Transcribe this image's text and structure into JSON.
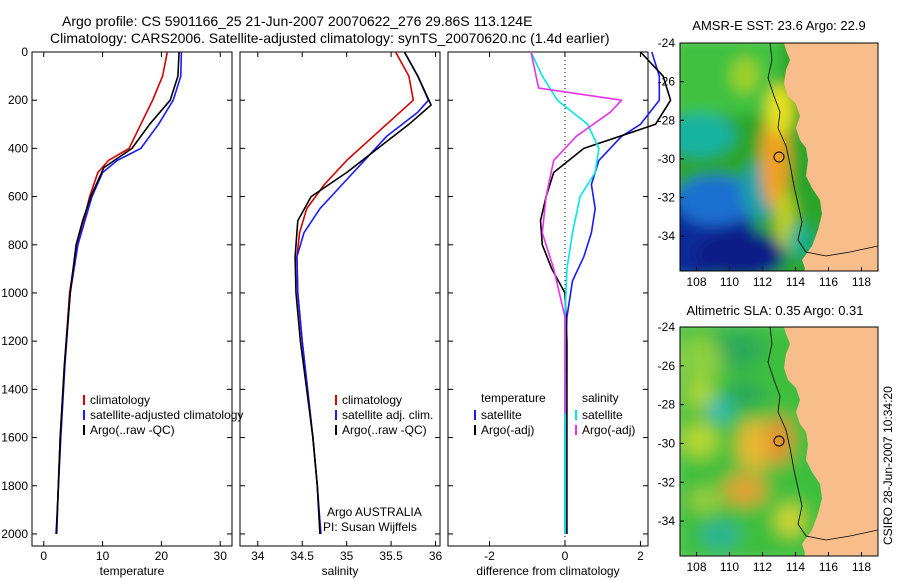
{
  "figure": {
    "title_line1": "Argo profile: CS 5901166_25 21-Jun-2007 20070622_276 29.86S 113.124E",
    "title_line2": "Climatology: CARS2006. Satellite-adjusted climatology: synTS_20070620.nc (1.4d earlier)",
    "side_label": "CSIRO 28-Jun-2007 10:34:20",
    "credit_line1": "Argo AUSTRALIA",
    "credit_line2": "PI: Susan Wijffels"
  },
  "colors": {
    "climatology": "#d40000",
    "satellite": "#1a1aff",
    "argo": "#000000",
    "sal_satellite": "#00e6e6",
    "sal_argo": "#e633e6",
    "land": "#f7be8c"
  },
  "chart_data": [
    {
      "type": "line",
      "xlabel": "temperature",
      "ylabel": "",
      "xlim": [
        -2,
        32
      ],
      "ylim": [
        2050,
        0
      ],
      "y_reversed": true,
      "xticks": [
        0,
        10,
        20,
        30
      ],
      "yticks": [
        0,
        200,
        400,
        600,
        800,
        1000,
        1200,
        1400,
        1600,
        1800,
        2000
      ],
      "legend": [
        "climatology",
        "satellite-adjusted climatology",
        "Argo(..raw -QC)"
      ],
      "legend_position": "lower-right",
      "series": [
        {
          "name": "climatology",
          "color": "#d40000",
          "x": [
            21.0,
            20.2,
            18.5,
            16.5,
            14.5,
            11.0,
            9.2,
            7.8,
            6.8,
            5.6,
            4.4,
            3.5,
            2.8,
            2.4,
            2.2
          ],
          "y": [
            0,
            100,
            200,
            300,
            400,
            450,
            500,
            600,
            700,
            800,
            1000,
            1300,
            1600,
            1850,
            2000
          ]
        },
        {
          "name": "satellite-adjusted climatology",
          "color": "#1a1aff",
          "x": [
            23.4,
            23.3,
            22.0,
            19.5,
            16.5,
            12.5,
            10.0,
            8.2,
            7.0,
            5.8,
            4.5,
            3.6,
            2.9,
            2.4,
            2.2
          ],
          "y": [
            0,
            100,
            200,
            300,
            400,
            450,
            500,
            600,
            700,
            800,
            1000,
            1300,
            1600,
            1850,
            2000
          ]
        },
        {
          "name": "Argo(..raw -QC)",
          "color": "#000000",
          "x": [
            23.0,
            22.8,
            21.5,
            18.0,
            15.0,
            12.0,
            10.2,
            8.0,
            6.6,
            5.5,
            4.5,
            3.5,
            2.8,
            2.4,
            2.1
          ],
          "y": [
            0,
            100,
            200,
            300,
            400,
            450,
            480,
            600,
            700,
            800,
            1000,
            1300,
            1600,
            1850,
            2000
          ]
        }
      ]
    },
    {
      "type": "line",
      "xlabel": "salinity",
      "ylabel": "",
      "xlim": [
        33.8,
        36.05
      ],
      "ylim": [
        2050,
        0
      ],
      "y_reversed": true,
      "xticks": [
        34,
        34.5,
        35,
        35.5,
        36
      ],
      "yticks": [
        0,
        200,
        400,
        600,
        800,
        1000,
        1200,
        1400,
        1600,
        1800,
        2000
      ],
      "legend": [
        "climatology",
        "satellite adj. clim.",
        "Argo(..raw -QC)"
      ],
      "legend_position": "lower-right",
      "series": [
        {
          "name": "climatology",
          "color": "#d40000",
          "x": [
            35.55,
            35.7,
            35.75,
            35.6,
            35.3,
            35.0,
            34.75,
            34.55,
            34.47,
            34.44,
            34.45,
            34.5,
            34.56,
            34.62,
            34.67,
            34.7
          ],
          "y": [
            0,
            100,
            200,
            250,
            350,
            450,
            550,
            650,
            750,
            850,
            1000,
            1200,
            1400,
            1600,
            1800,
            2000
          ]
        },
        {
          "name": "satellite adj. clim.",
          "color": "#1a1aff",
          "x": [
            35.65,
            35.8,
            35.92,
            35.8,
            35.45,
            35.2,
            34.95,
            34.7,
            34.52,
            34.44,
            34.45,
            34.5,
            34.56,
            34.62,
            34.67,
            34.71
          ],
          "y": [
            0,
            100,
            200,
            250,
            350,
            450,
            550,
            650,
            750,
            850,
            1000,
            1200,
            1400,
            1600,
            1800,
            2000
          ]
        },
        {
          "name": "Argo(..raw -QC)",
          "color": "#000000",
          "x": [
            35.65,
            35.8,
            35.9,
            35.95,
            35.7,
            35.35,
            35.0,
            34.6,
            34.45,
            34.42,
            34.43,
            34.48,
            34.55,
            34.62,
            34.67,
            34.7
          ],
          "y": [
            0,
            100,
            180,
            220,
            300,
            400,
            500,
            600,
            700,
            850,
            1000,
            1200,
            1400,
            1600,
            1800,
            2000
          ]
        }
      ]
    },
    {
      "type": "line",
      "xlabel": "difference from climatology",
      "ylabel": "",
      "xlim": [
        -3.1,
        2.2
      ],
      "ylim": [
        2050,
        0
      ],
      "y_reversed": true,
      "xticks": [
        -2,
        0,
        2
      ],
      "yticks": [
        0,
        200,
        400,
        600,
        800,
        1000,
        1200,
        1400,
        1600,
        1800,
        2000
      ],
      "legend_headers": [
        "temperature",
        "salinity"
      ],
      "legend": [
        "satellite",
        "Argo(-adj)",
        "satellite",
        "Argo(-adj)"
      ],
      "legend_position": "lower-center",
      "series": [
        {
          "name": "satellite",
          "variable": "temperature",
          "color": "#1a1aff",
          "x": [
            2.3,
            2.5,
            2.5,
            2.0,
            1.5,
            0.9,
            0.7,
            0.8,
            0.7,
            0.5,
            0.2,
            0.05,
            0.0,
            0.0,
            0.0
          ],
          "y": [
            0,
            100,
            200,
            300,
            350,
            450,
            550,
            650,
            750,
            850,
            950,
            1100,
            1400,
            1700,
            2000
          ]
        },
        {
          "name": "Argo(-adj)",
          "variable": "temperature",
          "color": "#000000",
          "x": [
            2.0,
            2.6,
            2.8,
            2.4,
            0.5,
            -0.3,
            -0.5,
            -0.65,
            -0.6,
            -0.35,
            0.0,
            0.05,
            0.05,
            0.05,
            0.05
          ],
          "y": [
            0,
            100,
            200,
            300,
            400,
            500,
            600,
            700,
            800,
            900,
            1000,
            1200,
            1500,
            1800,
            2000
          ]
        },
        {
          "name": "satellite",
          "variable": "salinity",
          "color": "#00e6e6",
          "x": [
            -0.9,
            -0.6,
            -0.2,
            0.6,
            0.9,
            0.8,
            0.4,
            0.2,
            0.05,
            0.0,
            0.0,
            0.0
          ],
          "y": [
            0,
            100,
            200,
            300,
            400,
            500,
            600,
            750,
            900,
            1100,
            1500,
            2000
          ]
        },
        {
          "name": "Argo(-adj)",
          "variable": "salinity",
          "color": "#e633e6",
          "x": [
            -0.9,
            -0.7,
            1.5,
            1.2,
            0.3,
            -0.3,
            -0.5,
            -0.6,
            -0.3,
            0.0,
            0.0
          ],
          "y": [
            0,
            150,
            200,
            250,
            350,
            450,
            600,
            750,
            900,
            1100,
            1500
          ]
        }
      ]
    },
    {
      "type": "heatmap",
      "title": "AMSR-E SST: 23.6 Argo: 22.9",
      "xlim": [
        107,
        119
      ],
      "ylim": [
        -35.8,
        -24
      ],
      "xticks": [
        108,
        110,
        112,
        114,
        116,
        118
      ],
      "yticks": [
        -24,
        -26,
        -28,
        -30,
        -32,
        -34
      ],
      "marker": {
        "lon": 113.124,
        "lat": -29.86
      }
    },
    {
      "type": "heatmap",
      "title": "Altimetric SLA: 0.35 Argo: 0.31",
      "xlim": [
        107,
        119
      ],
      "ylim": [
        -35.8,
        -24
      ],
      "xticks": [
        108,
        110,
        112,
        114,
        116,
        118
      ],
      "yticks": [
        -24,
        -26,
        -28,
        -30,
        -32,
        -34
      ],
      "marker": {
        "lon": 113.124,
        "lat": -29.86
      }
    }
  ]
}
